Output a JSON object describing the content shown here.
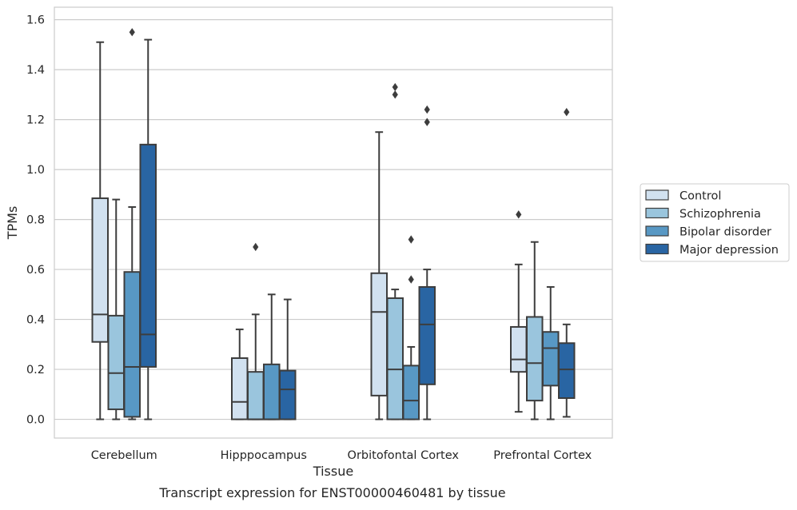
{
  "chart_data": {
    "type": "box",
    "title": "",
    "caption": "Transcript expression for ENST00000460481 by tissue",
    "xlabel": "Tissue",
    "ylabel": "TPMs",
    "ylim": [
      -0.075,
      1.65
    ],
    "yticks": [
      0.0,
      0.2,
      0.4,
      0.6,
      0.8,
      1.0,
      1.2,
      1.4,
      1.6
    ],
    "ytick_labels": [
      "0.0",
      "0.2",
      "0.4",
      "0.6",
      "0.8",
      "1.0",
      "1.2",
      "1.4",
      "1.6"
    ],
    "grid": "horizontal",
    "legend_position": "right",
    "categories": [
      "Cerebellum",
      "Hipppocampus",
      "Orbitofontal Cortex",
      "Prefrontal Cortex"
    ],
    "series": [
      {
        "name": "Control",
        "color": "#d1e1f0",
        "boxes": [
          {
            "whislo": 0.0,
            "q1": 0.31,
            "med": 0.42,
            "q3": 0.885,
            "whishi": 1.51,
            "fliers": []
          },
          {
            "whislo": 0.0,
            "q1": 0.0,
            "med": 0.07,
            "q3": 0.245,
            "whishi": 0.36,
            "fliers": []
          },
          {
            "whislo": 0.0,
            "q1": 0.095,
            "med": 0.43,
            "q3": 0.585,
            "whishi": 1.15,
            "fliers": []
          },
          {
            "whislo": 0.03,
            "q1": 0.19,
            "med": 0.24,
            "q3": 0.37,
            "whishi": 0.62,
            "fliers": [
              0.82
            ]
          }
        ]
      },
      {
        "name": "Schizophrenia",
        "color": "#9ac5dd",
        "boxes": [
          {
            "whislo": 0.0,
            "q1": 0.04,
            "med": 0.185,
            "q3": 0.415,
            "whishi": 0.88,
            "fliers": []
          },
          {
            "whislo": 0.0,
            "q1": 0.0,
            "med": 0.0,
            "q3": 0.19,
            "whishi": 0.42,
            "fliers": [
              0.69
            ]
          },
          {
            "whislo": 0.0,
            "q1": 0.0,
            "med": 0.2,
            "q3": 0.485,
            "whishi": 0.52,
            "fliers": [
              1.33,
              1.3
            ]
          },
          {
            "whislo": 0.0,
            "q1": 0.075,
            "med": 0.225,
            "q3": 0.41,
            "whishi": 0.71,
            "fliers": []
          }
        ]
      },
      {
        "name": "Bipolar disorder",
        "color": "#5898c4",
        "boxes": [
          {
            "whislo": 0.0,
            "q1": 0.01,
            "med": 0.21,
            "q3": 0.59,
            "whishi": 0.85,
            "fliers": [
              1.55
            ]
          },
          {
            "whislo": 0.0,
            "q1": 0.0,
            "med": 0.0,
            "q3": 0.22,
            "whishi": 0.5,
            "fliers": []
          },
          {
            "whislo": 0.0,
            "q1": 0.0,
            "med": 0.075,
            "q3": 0.215,
            "whishi": 0.29,
            "fliers": [
              0.72,
              0.56
            ]
          },
          {
            "whislo": 0.0,
            "q1": 0.135,
            "med": 0.285,
            "q3": 0.35,
            "whishi": 0.53,
            "fliers": []
          }
        ]
      },
      {
        "name": "Major depression",
        "color": "#2965a3",
        "boxes": [
          {
            "whislo": 0.0,
            "q1": 0.21,
            "med": 0.34,
            "q3": 1.1,
            "whishi": 1.52,
            "fliers": []
          },
          {
            "whislo": 0.0,
            "q1": 0.0,
            "med": 0.12,
            "q3": 0.195,
            "whishi": 0.48,
            "fliers": []
          },
          {
            "whislo": 0.0,
            "q1": 0.14,
            "med": 0.38,
            "q3": 0.53,
            "whishi": 0.6,
            "fliers": [
              1.24,
              1.19
            ]
          },
          {
            "whislo": 0.01,
            "q1": 0.085,
            "med": 0.2,
            "q3": 0.305,
            "whishi": 0.38,
            "fliers": [
              1.23
            ]
          }
        ]
      }
    ]
  }
}
